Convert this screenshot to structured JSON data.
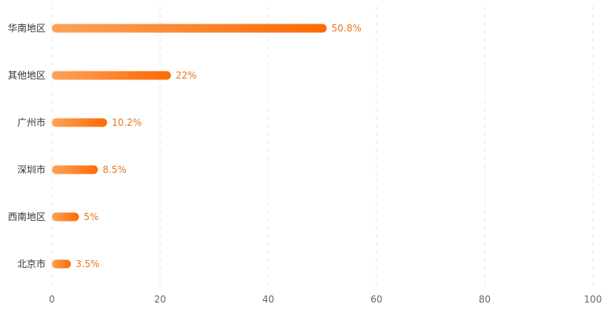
{
  "chart_data": {
    "type": "bar",
    "orientation": "horizontal",
    "categories": [
      "华南地区",
      "其他地区",
      "广州市",
      "深圳市",
      "西南地区",
      "北京市"
    ],
    "values": [
      50.8,
      22,
      10.2,
      8.5,
      5,
      3.5
    ],
    "value_labels": [
      "50.8%",
      "22%",
      "10.2%",
      "8.5%",
      "5%",
      "3.5%"
    ],
    "xlim": [
      0,
      100
    ],
    "x_ticks": [
      0,
      20,
      40,
      60,
      80,
      100
    ],
    "grid": "vertical-dashed",
    "colors": {
      "bar_start": "#fba35a",
      "bar_end": "#fe6a03",
      "value_label": "#e8751a",
      "grid": "#e6e6e6"
    }
  }
}
